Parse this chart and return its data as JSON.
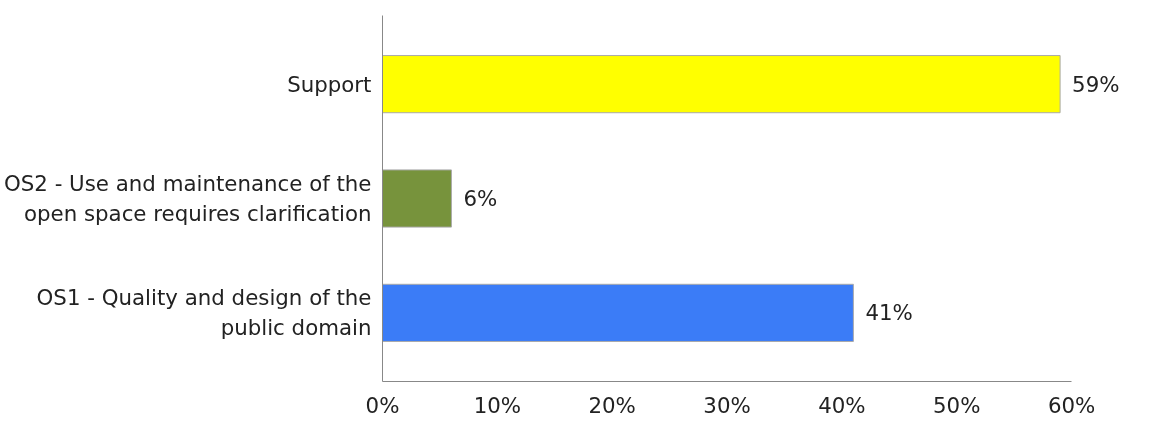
{
  "chart_data": {
    "type": "bar",
    "orientation": "horizontal",
    "categories": [
      "Support",
      "OS2 - Use and maintenance of the open space requires clarification",
      "OS1 - Quality and design of the public domain"
    ],
    "values": [
      59,
      6,
      41
    ],
    "colors": [
      "#ffff00",
      "#77933c",
      "#3b7cf7"
    ],
    "value_labels": [
      "59%",
      "6%",
      "41%"
    ],
    "xlim": [
      0,
      60
    ],
    "xticks": [
      {
        "value": 0,
        "label": "0%"
      },
      {
        "value": 10,
        "label": "10%"
      },
      {
        "value": 20,
        "label": "20%"
      },
      {
        "value": 30,
        "label": "30%"
      },
      {
        "value": 40,
        "label": "40%"
      },
      {
        "value": 50,
        "label": "50%"
      },
      {
        "value": 60,
        "label": "60%"
      }
    ],
    "grid": false
  }
}
